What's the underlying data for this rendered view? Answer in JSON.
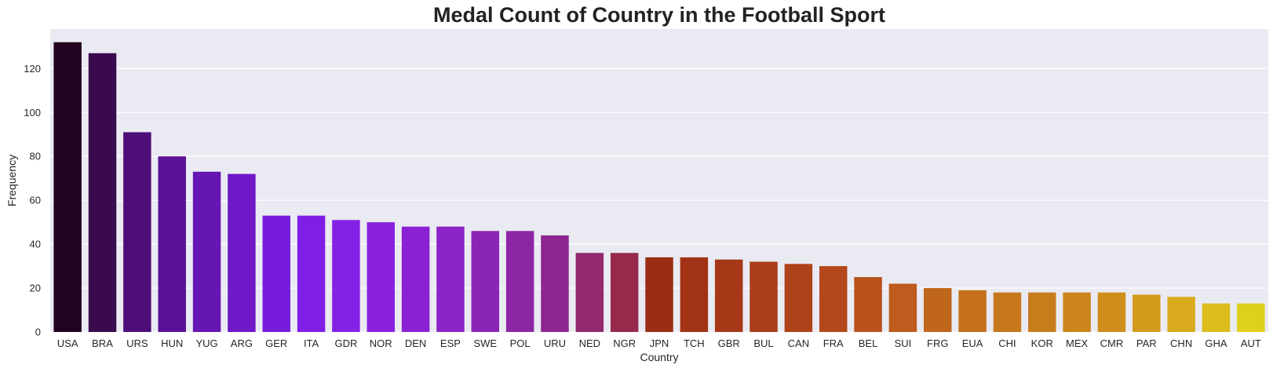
{
  "chart_data": {
    "type": "bar",
    "title": "Medal Count of Country in the Football Sport",
    "xlabel": "Country",
    "ylabel": "Frequency",
    "ylim": [
      0,
      138
    ],
    "yticks": [
      0,
      20,
      40,
      60,
      80,
      100,
      120
    ],
    "grid": true,
    "categories": [
      "USA",
      "BRA",
      "URS",
      "HUN",
      "YUG",
      "ARG",
      "GER",
      "ITA",
      "GDR",
      "NOR",
      "DEN",
      "ESP",
      "SWE",
      "POL",
      "URU",
      "NED",
      "NGR",
      "JPN",
      "TCH",
      "GBR",
      "BUL",
      "CAN",
      "FRA",
      "BEL",
      "SUI",
      "FRG",
      "EUA",
      "CHI",
      "KOR",
      "MEX",
      "CMR",
      "PAR",
      "CHN",
      "GHA",
      "AUT"
    ],
    "values": [
      132,
      127,
      91,
      80,
      73,
      72,
      53,
      53,
      51,
      50,
      48,
      48,
      46,
      46,
      44,
      36,
      36,
      34,
      34,
      33,
      32,
      31,
      30,
      25,
      22,
      20,
      19,
      18,
      18,
      18,
      18,
      17,
      16,
      13,
      13
    ],
    "colors": [
      "#22031f",
      "#3a0a4f",
      "#4d0e79",
      "#5a1198",
      "#6616b3",
      "#6e18c8",
      "#771cdb",
      "#7f1fe6",
      "#8521e4",
      "#8a22dd",
      "#8a22d3",
      "#8b23c6",
      "#8b25b6",
      "#8c26a4",
      "#8d2690",
      "#92286d",
      "#972a4a",
      "#9a2e14",
      "#a13215",
      "#a63818",
      "#aa3c1a",
      "#ae4219",
      "#b4481b",
      "#b8511c",
      "#bd5c1d",
      "#c0661c",
      "#c4701c",
      "#c6771c",
      "#c87d1c",
      "#cb851b",
      "#cf8e1b",
      "#d49c1b",
      "#d9aa1b",
      "#dcbd1c",
      "#e0d01e"
    ],
    "background": "#eaeaf2",
    "gridcolor": "#ffffff"
  }
}
